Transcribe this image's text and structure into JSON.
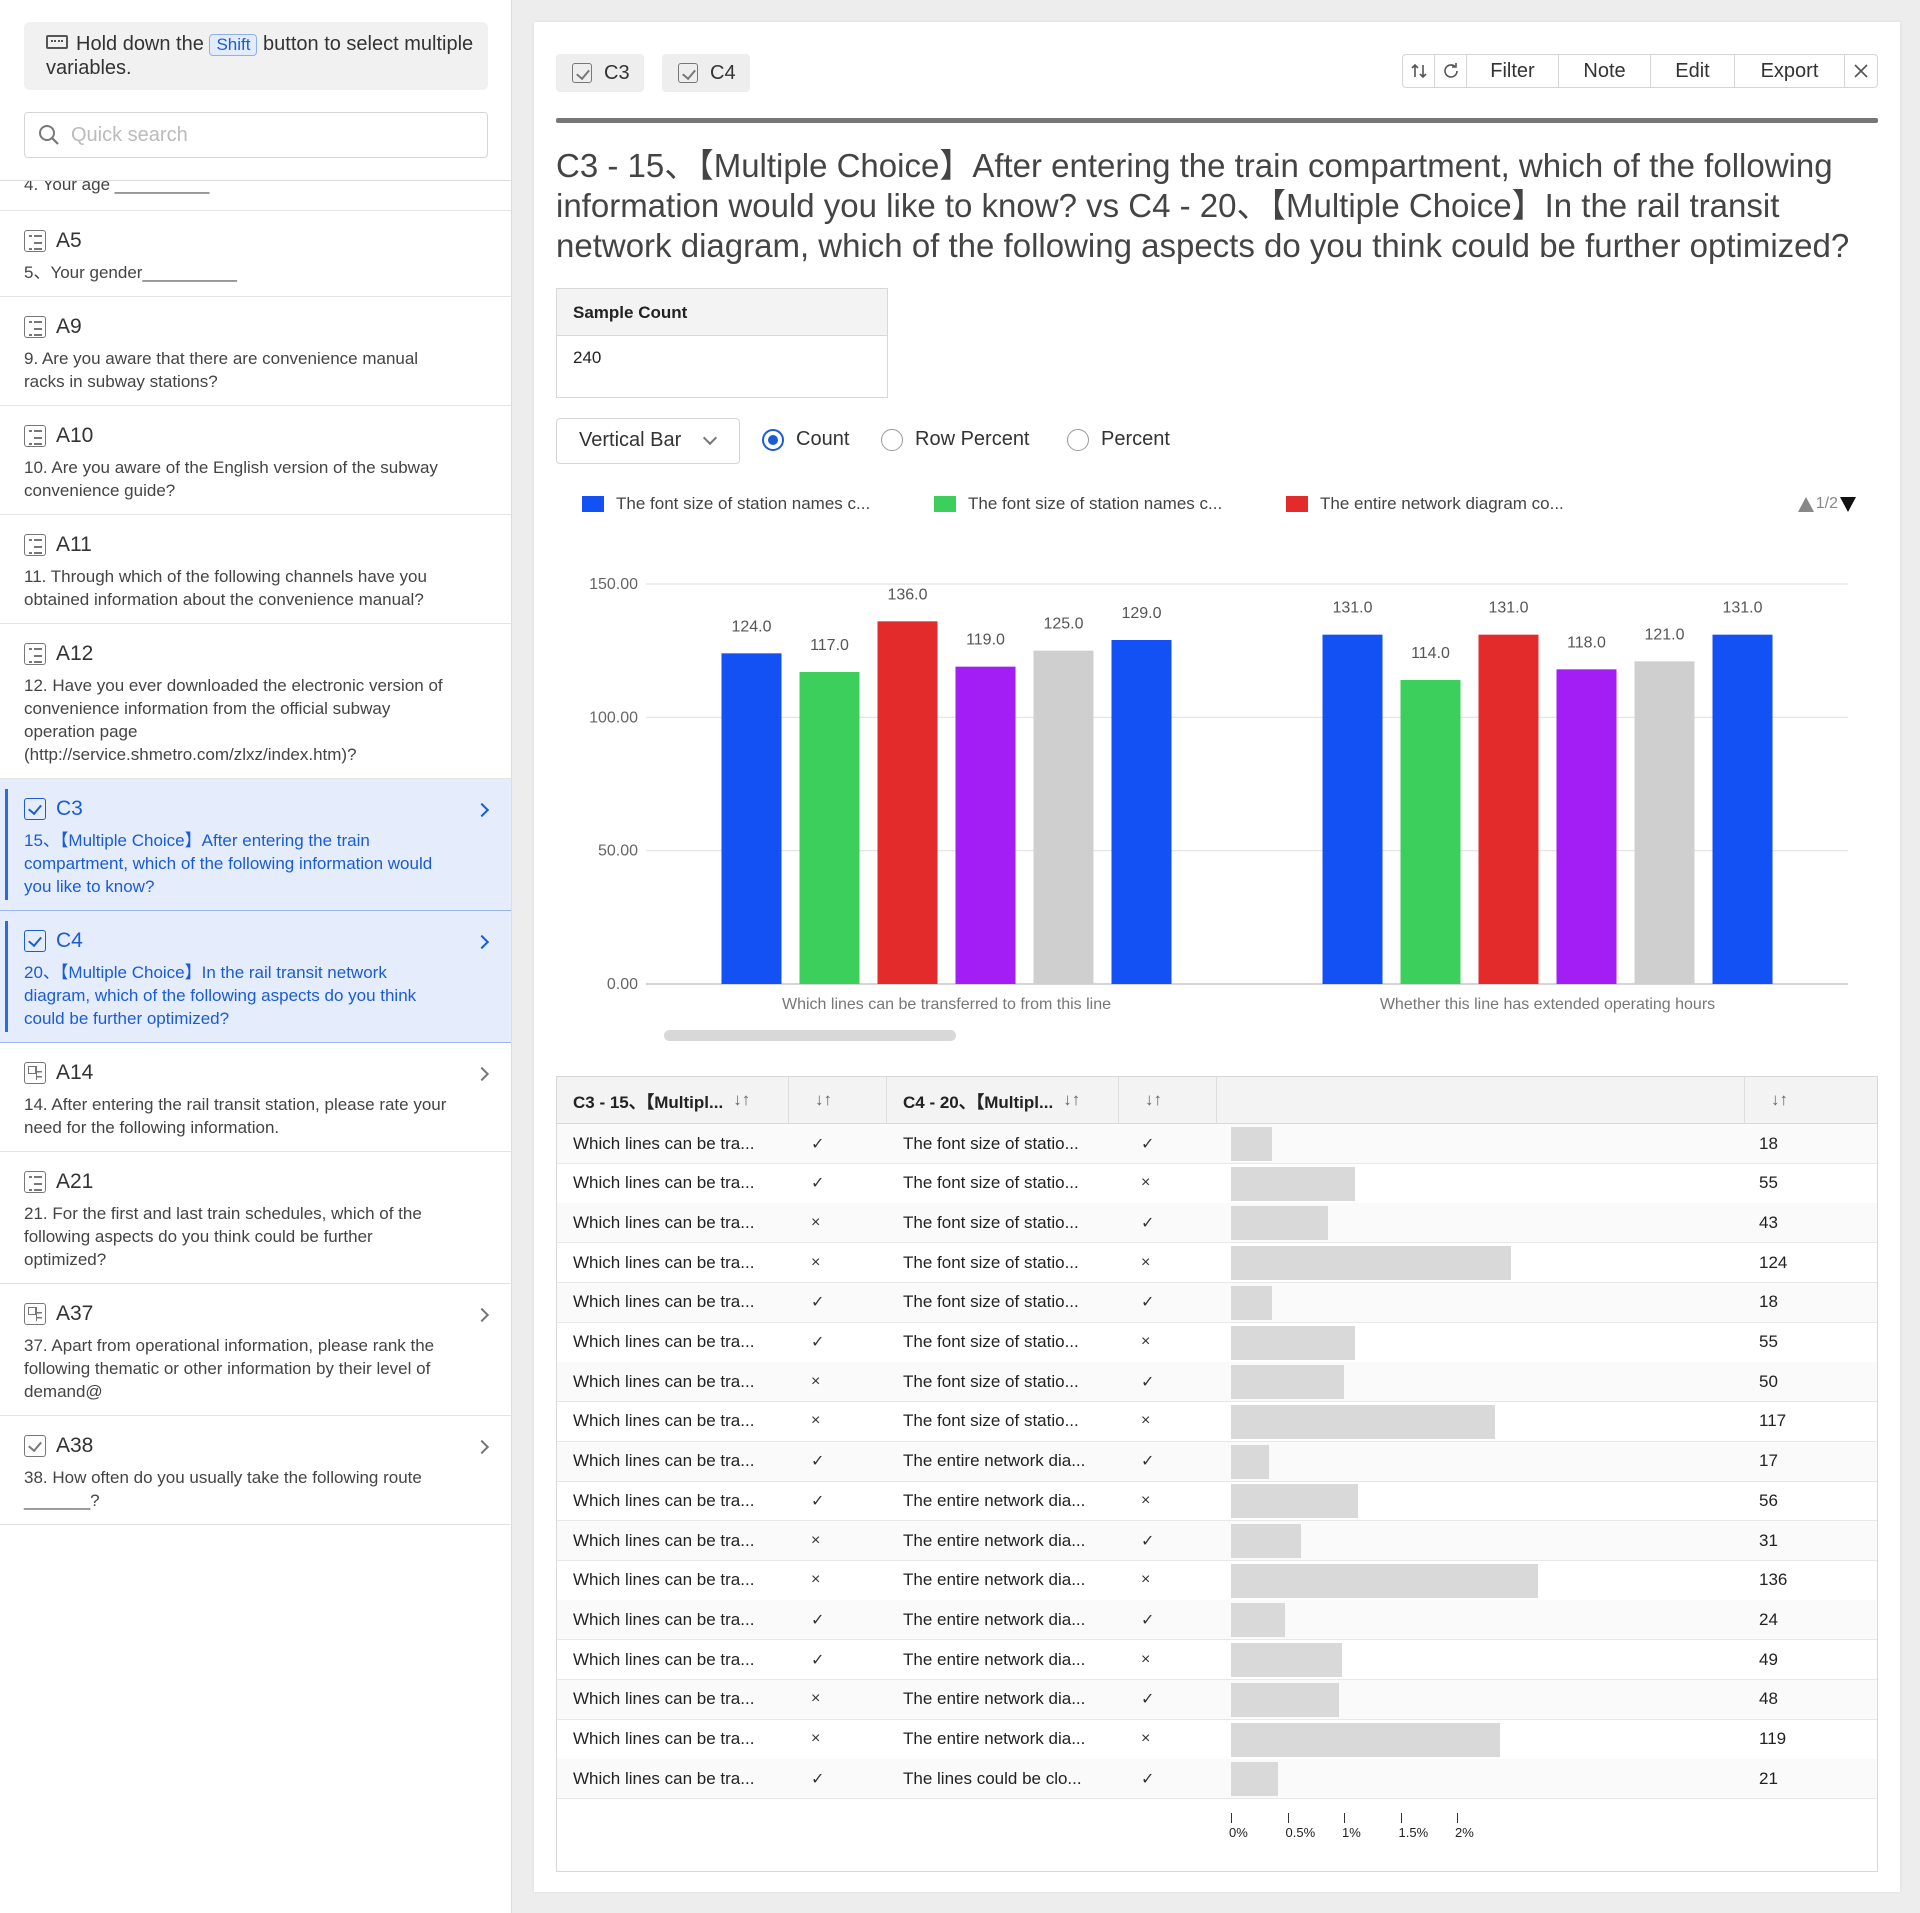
{
  "sidebar": {
    "hint_before": "Hold down the",
    "hint_key": "Shift",
    "hint_after": "button to select multiple variables.",
    "search_placeholder": "Quick search",
    "partial_text": "4. Your age __________",
    "items": [
      {
        "code": "A5",
        "icon": "list-icon",
        "text": "5、Your gender__________",
        "chevron": false,
        "selected": false
      },
      {
        "code": "A9",
        "icon": "list-icon",
        "text": "9. Are you aware that there are convenience manual racks in subway stations?",
        "chevron": false,
        "selected": false
      },
      {
        "code": "A10",
        "icon": "list-icon",
        "text": "10. Are you aware of the English version of the subway convenience guide?",
        "chevron": false,
        "selected": false
      },
      {
        "code": "A11",
        "icon": "list-icon",
        "text": "11. Through which of the following channels have you obtained information about the convenience manual?",
        "chevron": false,
        "selected": false
      },
      {
        "code": "A12",
        "icon": "list-icon",
        "text": "12. Have you ever downloaded the electronic version of convenience information from the official subway operation page (http://service.shmetro.com/zlxz/index.htm)?",
        "chevron": false,
        "selected": false
      },
      {
        "code": "C3",
        "icon": "checkbox-icon",
        "text": "15、【Multiple Choice】After entering the train compartment, which of the following information would you like to know?",
        "chevron": true,
        "selected": true
      },
      {
        "code": "C4",
        "icon": "checkbox-icon",
        "text": "20、【Multiple Choice】In the rail transit network diagram, which of the following aspects do you think could be further optimized?",
        "chevron": true,
        "selected": true
      },
      {
        "code": "A14",
        "icon": "grid-icon",
        "text": "14. After entering the rail transit station, please rate your need for the following information.",
        "chevron": true,
        "selected": false
      },
      {
        "code": "A21",
        "icon": "list-icon",
        "text": "21. For the first and last train schedules, which of the following aspects do you think could be further optimized?",
        "chevron": false,
        "selected": false
      },
      {
        "code": "A37",
        "icon": "grid-icon",
        "text": "37. Apart from operational information, please rank the following thematic or other information by their level of demand@",
        "chevron": true,
        "selected": false
      },
      {
        "code": "A38",
        "icon": "checkbox-icon",
        "text": "38. How often do you usually take the following route _______?",
        "chevron": true,
        "selected": false
      }
    ]
  },
  "main": {
    "chips": [
      "C3",
      "C4"
    ],
    "toolbar": {
      "filter": "Filter",
      "note": "Note",
      "edit": "Edit",
      "export": "Export"
    },
    "title": "C3 - 15、【Multiple Choice】After entering the train compartment, which of the following information would you like to know? vs C4 - 20、【Multiple Choice】In the rail transit network diagram, which of the following aspects do you think could be further optimized?",
    "sample": {
      "label": "Sample Count",
      "value": "240"
    },
    "chart_type_select": "Vertical Bar",
    "radios": [
      {
        "label": "Count",
        "checked": true
      },
      {
        "label": "Row Percent",
        "checked": false
      },
      {
        "label": "Percent",
        "checked": false
      }
    ],
    "pager": "1/2"
  },
  "chart_data": {
    "type": "bar",
    "categories": [
      "Which lines can be transferred to from this line",
      "Whether this line has extended operating hours"
    ],
    "legend": [
      {
        "name": "The font size of station names c...",
        "color": "#1351f5"
      },
      {
        "name": "The font size of station names c...",
        "color": "#3ccf5b"
      },
      {
        "name": "The entire network diagram co...",
        "color": "#e32b2b"
      }
    ],
    "series": [
      {
        "color": "#1351f5",
        "values": [
          124.0,
          131.0
        ]
      },
      {
        "color": "#3ccf5b",
        "values": [
          117.0,
          114.0
        ]
      },
      {
        "color": "#e32b2b",
        "values": [
          136.0,
          131.0
        ]
      },
      {
        "color": "#a21ef5",
        "values": [
          119.0,
          118.0
        ]
      },
      {
        "color": "#cfcfcf",
        "values": [
          125.0,
          121.0
        ]
      },
      {
        "color": "#1351f5",
        "values": [
          129.0,
          131.0
        ]
      }
    ],
    "yticks": [
      "0.00",
      "50.00",
      "100.00",
      "150.00"
    ],
    "ylim": [
      0,
      150
    ],
    "grid": true,
    "legend_position": "top"
  },
  "table": {
    "headers": [
      "C3 - 15、【Multipl...",
      "C4 - 20、【Multipl..."
    ],
    "rows": [
      {
        "c3": "Which lines can be tra...",
        "m1": "✓",
        "c4": "The font size of statio...",
        "m2": "✓",
        "count": "18",
        "pct": 0.18
      },
      {
        "c3": "Which lines can be tra...",
        "m1": "✓",
        "c4": "The font size of statio...",
        "m2": "×",
        "count": "55",
        "pct": 0.55
      },
      {
        "c3": "Which lines can be tra...",
        "m1": "×",
        "c4": "The font size of statio...",
        "m2": "✓",
        "count": "43",
        "pct": 0.43
      },
      {
        "c3": "Which lines can be tra...",
        "m1": "×",
        "c4": "The font size of statio...",
        "m2": "×",
        "count": "124",
        "pct": 1.24
      },
      {
        "c3": "Which lines can be tra...",
        "m1": "✓",
        "c4": "The font size of statio...",
        "m2": "✓",
        "count": "18",
        "pct": 0.18
      },
      {
        "c3": "Which lines can be tra...",
        "m1": "✓",
        "c4": "The font size of statio...",
        "m2": "×",
        "count": "55",
        "pct": 0.55
      },
      {
        "c3": "Which lines can be tra...",
        "m1": "×",
        "c4": "The font size of statio...",
        "m2": "✓",
        "count": "50",
        "pct": 0.5
      },
      {
        "c3": "Which lines can be tra...",
        "m1": "×",
        "c4": "The font size of statio...",
        "m2": "×",
        "count": "117",
        "pct": 1.17
      },
      {
        "c3": "Which lines can be tra...",
        "m1": "✓",
        "c4": "The entire network dia...",
        "m2": "✓",
        "count": "17",
        "pct": 0.17
      },
      {
        "c3": "Which lines can be tra...",
        "m1": "✓",
        "c4": "The entire network dia...",
        "m2": "×",
        "count": "56",
        "pct": 0.56
      },
      {
        "c3": "Which lines can be tra...",
        "m1": "×",
        "c4": "The entire network dia...",
        "m2": "✓",
        "count": "31",
        "pct": 0.31
      },
      {
        "c3": "Which lines can be tra...",
        "m1": "×",
        "c4": "The entire network dia...",
        "m2": "×",
        "count": "136",
        "pct": 1.36
      },
      {
        "c3": "Which lines can be tra...",
        "m1": "✓",
        "c4": "The entire network dia...",
        "m2": "✓",
        "count": "24",
        "pct": 0.24
      },
      {
        "c3": "Which lines can be tra...",
        "m1": "✓",
        "c4": "The entire network dia...",
        "m2": "×",
        "count": "49",
        "pct": 0.49
      },
      {
        "c3": "Which lines can be tra...",
        "m1": "×",
        "c4": "The entire network dia...",
        "m2": "✓",
        "count": "48",
        "pct": 0.48
      },
      {
        "c3": "Which lines can be tra...",
        "m1": "×",
        "c4": "The entire network dia...",
        "m2": "×",
        "count": "119",
        "pct": 1.19
      },
      {
        "c3": "Which lines can be tra...",
        "m1": "✓",
        "c4": "The lines could be clo...",
        "m2": "✓",
        "count": "21",
        "pct": 0.21
      }
    ],
    "axis_labels": [
      "0%",
      "0.5%",
      "1%",
      "1.5%",
      "2%"
    ],
    "axis_max_pct": 2.0
  }
}
